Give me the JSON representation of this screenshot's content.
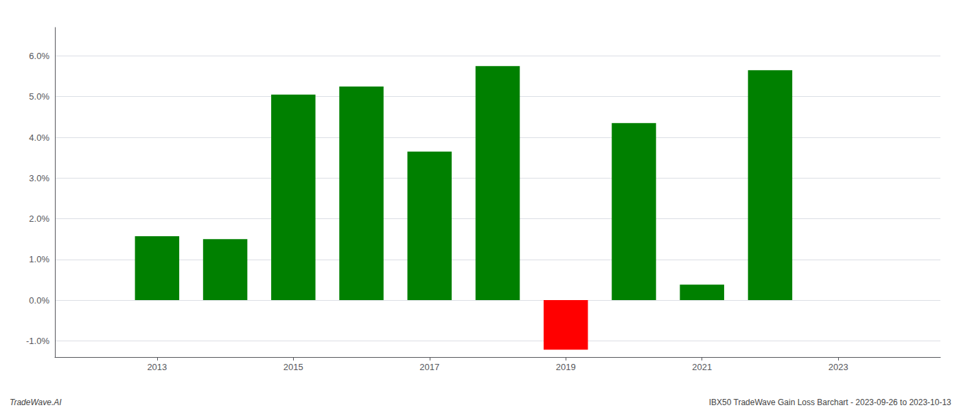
{
  "chart_data": {
    "type": "bar",
    "x": [
      2013,
      2014,
      2015,
      2016,
      2017,
      2018,
      2019,
      2020,
      2021,
      2022
    ],
    "values": [
      0.0157,
      0.015,
      0.0505,
      0.0525,
      0.0365,
      0.0575,
      -0.0122,
      0.0435,
      0.0038,
      0.0565
    ],
    "colors": [
      "#008000",
      "#008000",
      "#008000",
      "#008000",
      "#008000",
      "#008000",
      "#ff0000",
      "#008000",
      "#008000",
      "#008000"
    ],
    "xlim": [
      2011.5,
      2024.5
    ],
    "xticks": [
      2013,
      2015,
      2017,
      2019,
      2021,
      2023
    ],
    "ylim": [
      -0.014,
      0.067
    ],
    "yticks": [
      {
        "value": -0.01,
        "label": "-1.0%"
      },
      {
        "value": 0.0,
        "label": "0.0%"
      },
      {
        "value": 0.01,
        "label": "1.0%"
      },
      {
        "value": 0.02,
        "label": "2.0%"
      },
      {
        "value": 0.03,
        "label": "3.0%"
      },
      {
        "value": 0.04,
        "label": "4.0%"
      },
      {
        "value": 0.05,
        "label": "5.0%"
      },
      {
        "value": 0.06,
        "label": "6.0%"
      }
    ],
    "grid": true,
    "annotations": [
      "TradeWave.AI",
      "IBX50 TradeWave Gain Loss Barchart - 2023-09-26 to 2023-10-13"
    ]
  }
}
